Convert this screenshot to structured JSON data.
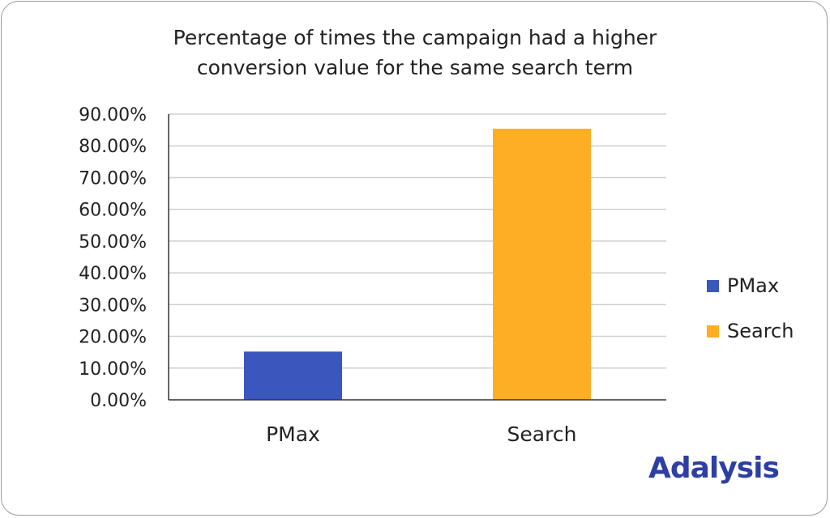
{
  "chart_data": {
    "type": "bar",
    "title": "Percentage of times the campaign had a higher conversion value for the same search term",
    "title_lines": [
      "Percentage of times the campaign had a higher",
      "conversion value for the same search term"
    ],
    "categories": [
      "PMax",
      "Search"
    ],
    "values": [
      15.2,
      85.4
    ],
    "colors": [
      "#3a57bd",
      "#fdae24"
    ],
    "ylim": [
      0,
      90
    ],
    "yticks": [
      0,
      10,
      20,
      30,
      40,
      50,
      60,
      70,
      80,
      90
    ],
    "ytick_labels": [
      "0.00%",
      "10.00%",
      "20.00%",
      "30.00%",
      "40.00%",
      "50.00%",
      "60.00%",
      "70.00%",
      "80.00%",
      "90.00%"
    ],
    "grid": true,
    "legend_position": "right",
    "legend": [
      {
        "label": "PMax",
        "color": "#3a57bd"
      },
      {
        "label": "Search",
        "color": "#fdae24"
      }
    ],
    "xlabel": "",
    "ylabel": ""
  },
  "logo": {
    "text": "Adalysis"
  }
}
